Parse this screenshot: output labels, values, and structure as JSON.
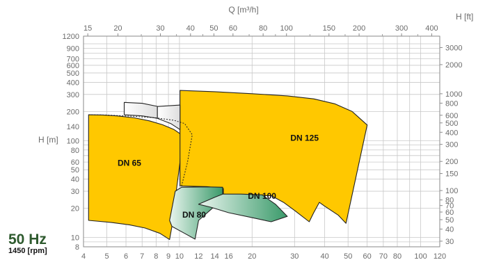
{
  "chart_data": {
    "type": "area",
    "subtitle": {
      "frequency": "50 Hz",
      "speed": "1450 [rpm]"
    },
    "axes": {
      "left": {
        "label": "H [m]",
        "scale": "log",
        "range": [
          8,
          1200
        ],
        "ticks": [
          "8",
          "10",
          "20",
          "30",
          "40",
          "50",
          "60",
          "80",
          "100",
          "140",
          "200",
          "300",
          "400",
          "500",
          "600",
          "700",
          "900",
          "1200"
        ]
      },
      "right": {
        "label": "H [ft]",
        "scale": "log",
        "ticks": [
          "30",
          "40",
          "50",
          "60",
          "70",
          "80",
          "100",
          "150",
          "200",
          "300",
          "400",
          "500",
          "600",
          "800",
          "1000",
          "2000",
          "3000"
        ]
      },
      "bottom": {
        "label": "",
        "scale": "log",
        "range": [
          4,
          120
        ],
        "ticks": [
          "4",
          "5",
          "6",
          "7",
          "8",
          "9",
          "10",
          "12",
          "14",
          "16",
          "20",
          "30",
          "40",
          "50",
          "60",
          "70",
          "80",
          "100",
          "120"
        ]
      },
      "top": {
        "label": "Q [m³/h]",
        "scale": "log",
        "ticks": [
          "15",
          "20",
          "30",
          "40",
          "50",
          "60",
          "80",
          "100",
          "150",
          "200",
          "300",
          "400"
        ]
      }
    },
    "grid": true,
    "series": [
      {
        "name": "DN 65",
        "color": "#ffc800",
        "boundary": [
          [
            4.2,
            185
          ],
          [
            4.8,
            184
          ],
          [
            5.5,
            180
          ],
          [
            6.5,
            172
          ],
          [
            7.5,
            160
          ],
          [
            8.5,
            146
          ],
          [
            9.5,
            130
          ],
          [
            10.2,
            115
          ],
          [
            10.05,
            60
          ],
          [
            9.7,
            30
          ],
          [
            9.4,
            15
          ],
          [
            9.1,
            9.5
          ],
          [
            8.3,
            11
          ],
          [
            7.2,
            12.5
          ],
          [
            6.2,
            13.5
          ],
          [
            5.2,
            14.3
          ],
          [
            4.2,
            15
          ]
        ]
      },
      {
        "name": "DN 125",
        "color": "#ffc800",
        "boundary": [
          [
            10.05,
            330
          ],
          [
            14,
            320
          ],
          [
            20,
            305
          ],
          [
            28,
            290
          ],
          [
            36,
            270
          ],
          [
            44,
            240
          ],
          [
            52,
            200
          ],
          [
            60,
            145
          ],
          [
            49,
            14
          ],
          [
            45.5,
            17
          ],
          [
            40,
            21
          ],
          [
            38,
            23
          ],
          [
            36,
            18
          ],
          [
            34.5,
            14.5
          ],
          [
            30,
            19
          ],
          [
            27,
            23
          ],
          [
            24,
            27
          ],
          [
            22,
            27
          ],
          [
            20,
            27
          ],
          [
            18,
            27
          ],
          [
            15.2,
            28
          ],
          [
            15.2,
            32
          ],
          [
            13,
            33.5
          ],
          [
            10.05,
            34
          ]
        ]
      },
      {
        "name": "DN 80",
        "color": "#3a9a6a",
        "boundary": [
          [
            9.6,
            30
          ],
          [
            10.2,
            33
          ],
          [
            13,
            33.3
          ],
          [
            15.1,
            33
          ],
          [
            15.1,
            28
          ],
          [
            14,
            21
          ],
          [
            12,
            15
          ],
          [
            11.6,
            9.6
          ],
          [
            10.5,
            11
          ],
          [
            9.3,
            13
          ],
          [
            9.1,
            15
          ]
        ]
      },
      {
        "name": "DN 100",
        "color": "#3a9a6a",
        "boundary": [
          [
            12,
            22
          ],
          [
            14,
            26
          ],
          [
            15.1,
            28
          ],
          [
            18,
            28
          ],
          [
            22,
            27.5
          ],
          [
            25,
            22
          ],
          [
            28,
            16.5
          ],
          [
            24,
            14.5
          ],
          [
            20,
            16
          ],
          [
            16,
            18
          ],
          [
            13.5,
            20.5
          ]
        ]
      },
      {
        "name": "",
        "color": "#f2f2f2",
        "boundary": [
          [
            5.9,
            248
          ],
          [
            7,
            243
          ],
          [
            8.1,
            226
          ],
          [
            8.1,
            170
          ],
          [
            7,
            180
          ],
          [
            5.9,
            185
          ]
        ]
      },
      {
        "name": "",
        "color": "#f2f2f2",
        "boundary": [
          [
            8.1,
            225
          ],
          [
            10.05,
            233
          ],
          [
            10.05,
            130
          ],
          [
            9.2,
            150
          ],
          [
            8.1,
            170
          ]
        ]
      }
    ],
    "dashed_boundary": [
      [
        4.2,
        185
      ],
      [
        5,
        184
      ],
      [
        6.5,
        178
      ],
      [
        8,
        172
      ],
      [
        9.5,
        162
      ],
      [
        10.5,
        150
      ],
      [
        11.3,
        115
      ],
      [
        10.8,
        60
      ],
      [
        10.2,
        34
      ]
    ],
    "labels": [
      {
        "text": "DN 65",
        "x": 6.2,
        "y": 55
      },
      {
        "text": "DN 125",
        "x": 33,
        "y": 100
      },
      {
        "text": "DN 80",
        "x": 11.5,
        "y": 16
      },
      {
        "text": "DN 100",
        "x": 22,
        "y": 25
      }
    ]
  }
}
